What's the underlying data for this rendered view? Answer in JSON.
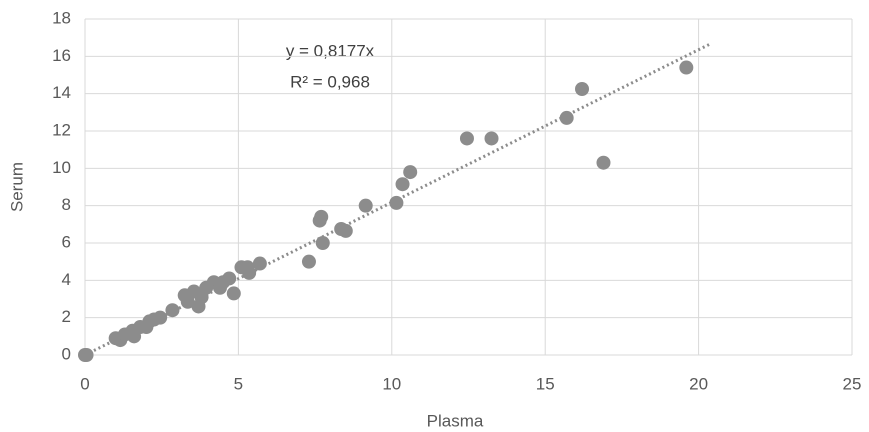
{
  "chart_data": {
    "type": "scatter",
    "x_label": "Plasma",
    "y_label": "Serum",
    "annotations": [
      "y = 0,8177x",
      "R² = 0,968"
    ],
    "color": "#8c8c8c",
    "grid": true,
    "xlim": [
      0,
      25
    ],
    "xticks": [
      0,
      5,
      10,
      15,
      20,
      25
    ],
    "ylim": [
      0,
      18
    ],
    "yticks": [
      0,
      2,
      4,
      6,
      8,
      10,
      12,
      14,
      16,
      18
    ],
    "trendline": {
      "slope": 0.8177,
      "xlim": [
        0,
        20.4
      ],
      "color": "#8c8c8c"
    },
    "x": [
      0,
      0.05,
      1.0,
      1.15,
      1.3,
      1.55,
      1.6,
      1.8,
      2.0,
      2.1,
      2.25,
      2.45,
      2.85,
      3.25,
      3.35,
      3.55,
      3.7,
      3.8,
      3.95,
      4.2,
      4.4,
      4.5,
      4.7,
      4.85,
      5.1,
      5.3,
      5.35,
      5.7,
      7.3,
      7.65,
      7.7,
      7.75,
      8.35,
      8.5,
      9.15,
      10.15,
      10.35,
      10.6,
      12.45,
      13.25,
      15.7,
      16.2,
      16.9,
      19.6
    ],
    "values": [
      0,
      0,
      0.9,
      0.8,
      1.1,
      1.3,
      1.0,
      1.5,
      1.5,
      1.8,
      1.9,
      2.0,
      2.4,
      3.2,
      2.85,
      3.4,
      2.6,
      3.1,
      3.6,
      3.9,
      3.6,
      3.9,
      4.1,
      3.3,
      4.7,
      4.7,
      4.4,
      4.9,
      5.0,
      7.2,
      7.4,
      6.0,
      6.75,
      6.65,
      8.0,
      8.15,
      9.15,
      9.8,
      11.6,
      11.6,
      12.7,
      14.25,
      10.3,
      15.4
    ]
  }
}
